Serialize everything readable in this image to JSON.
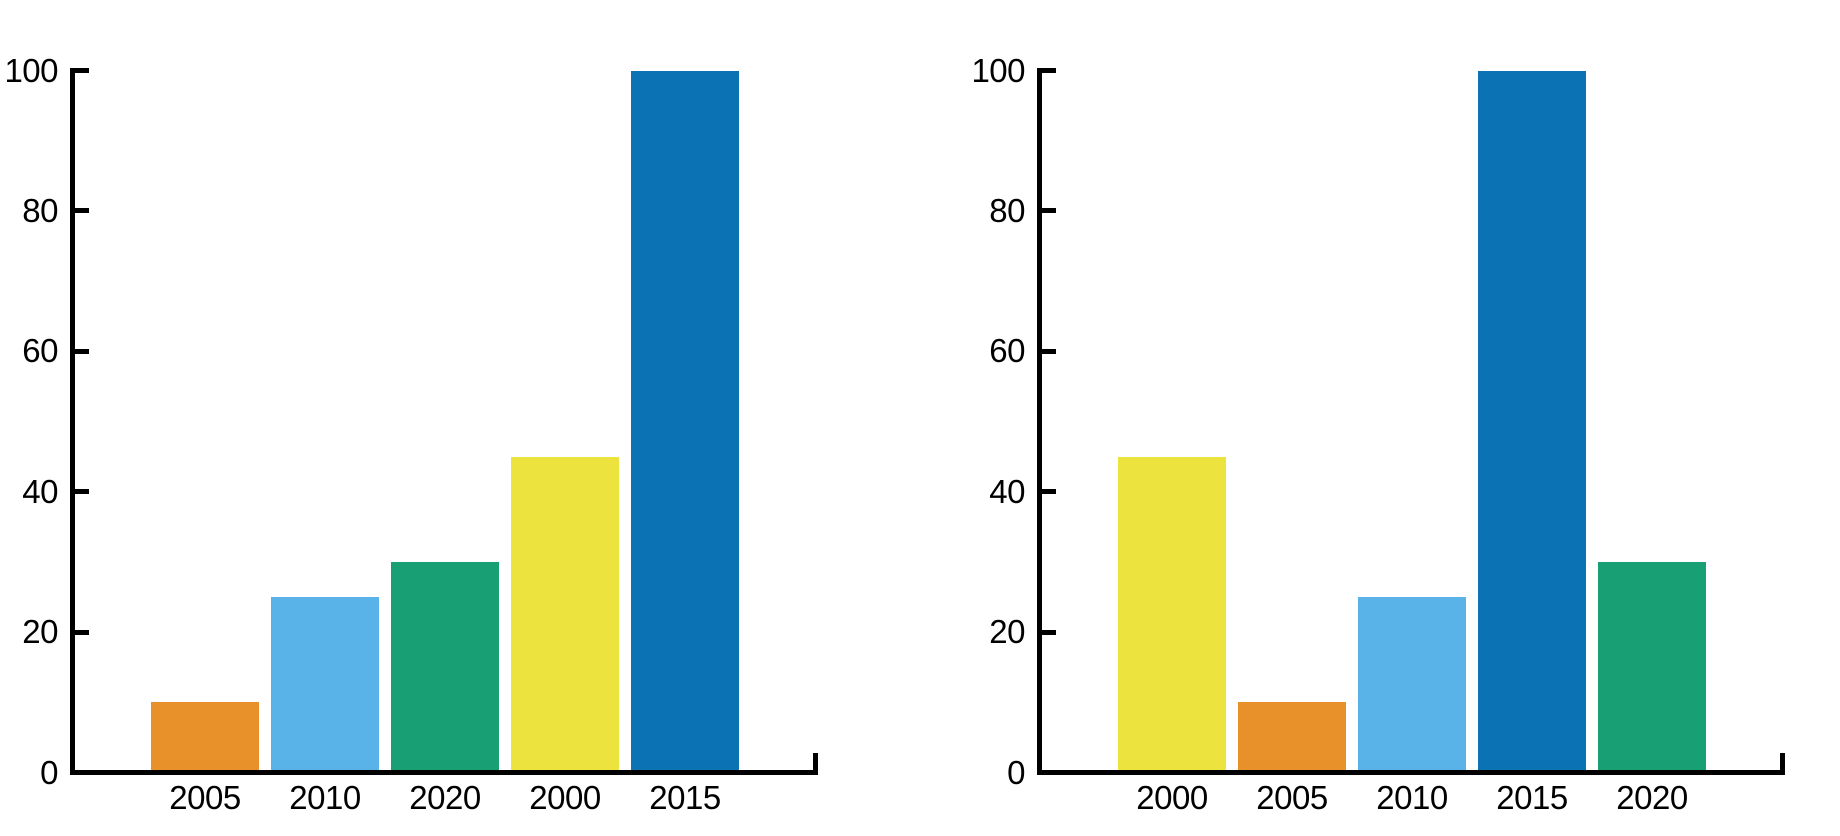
{
  "figure": {
    "background_color": "#ffffff",
    "text_color": "#000000",
    "axis_color": "#000000"
  },
  "chart_data": [
    {
      "type": "bar",
      "panel": "left",
      "title": "",
      "xlabel": "",
      "ylabel": "",
      "categories": [
        "2005",
        "2010",
        "2020",
        "2000",
        "2015"
      ],
      "values": [
        10,
        25,
        30,
        45,
        100
      ],
      "bar_colors": [
        "#E8912B",
        "#59B3E8",
        "#18A074",
        "#ECE33E",
        "#0B72B4"
      ],
      "ylim": [
        0,
        100
      ],
      "yticks": [
        0,
        20,
        40,
        60,
        80,
        100
      ],
      "ytick_labels": [
        "0",
        "20",
        "40",
        "60",
        "80",
        "100"
      ],
      "grid": false,
      "legend": false
    },
    {
      "type": "bar",
      "panel": "right",
      "title": "",
      "xlabel": "",
      "ylabel": "",
      "categories": [
        "2000",
        "2005",
        "2010",
        "2015",
        "2020"
      ],
      "values": [
        45,
        10,
        25,
        100,
        30
      ],
      "bar_colors": [
        "#ECE33E",
        "#E8912B",
        "#59B3E8",
        "#0B72B4",
        "#18A074"
      ],
      "ylim": [
        0,
        100
      ],
      "yticks": [
        0,
        20,
        40,
        60,
        80,
        100
      ],
      "ytick_labels": [
        "0",
        "20",
        "40",
        "60",
        "80",
        "100"
      ],
      "grid": false,
      "legend": false
    }
  ]
}
